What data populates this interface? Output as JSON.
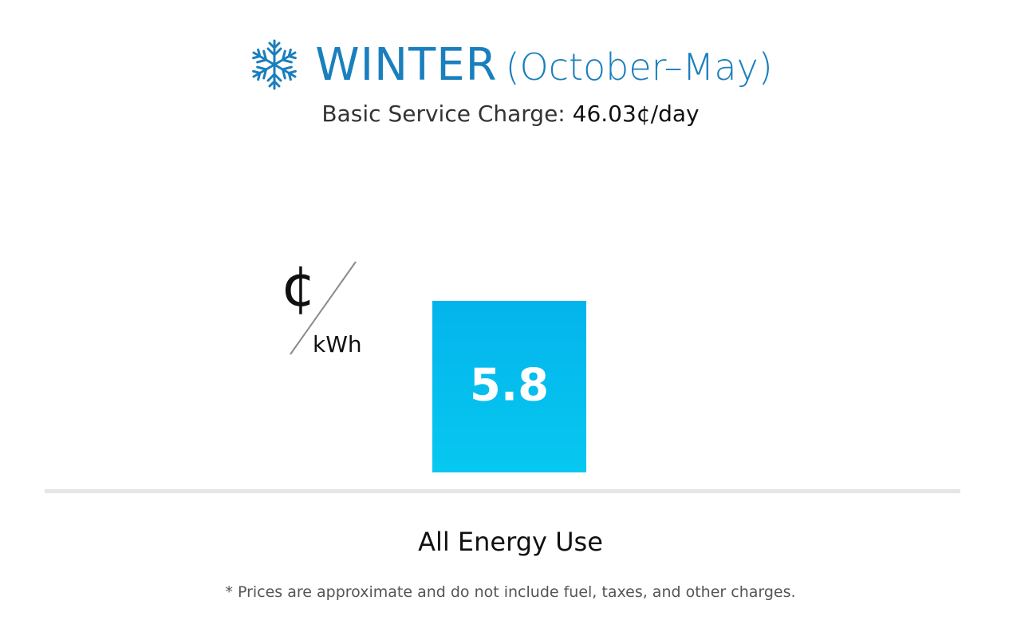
{
  "header": {
    "title": "WINTER",
    "subtitle": "(October–May)",
    "icon": "snowflake-icon",
    "service_charge_label": "Basic Service Charge:",
    "service_charge_value": "46.03¢/day"
  },
  "unit": {
    "numerator": "¢",
    "denominator": "kWh"
  },
  "colors": {
    "title": "#1a7fbd",
    "bar_top": "#04b4ec",
    "bar_bottom": "#06c8f0",
    "baseline": "#e6e6e6"
  },
  "chart_data": {
    "type": "bar",
    "categories": [
      "All Energy Use"
    ],
    "values": [
      5.8
    ],
    "data_labels": [
      "5.8"
    ],
    "unit": "¢/kWh"
  },
  "footnote": "* Prices are approximate and do not include fuel, taxes, and other charges."
}
